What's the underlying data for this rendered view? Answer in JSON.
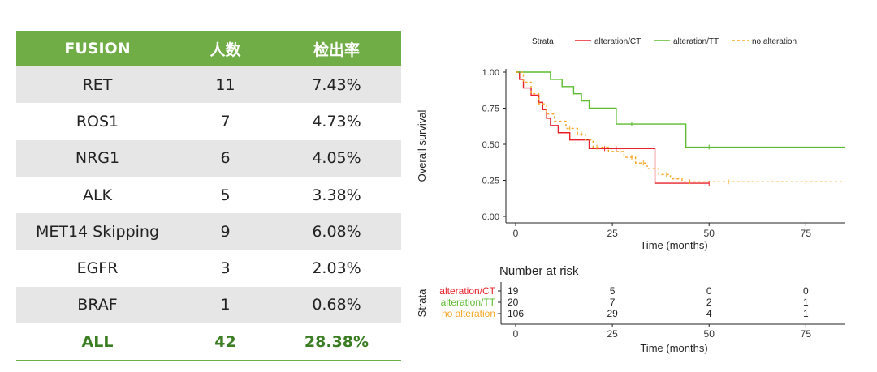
{
  "table": {
    "headers": [
      "FUSION",
      "人数",
      "检出率"
    ],
    "rows": [
      {
        "name": "RET",
        "count": "11",
        "rate": "7.43%"
      },
      {
        "name": "ROS1",
        "count": "7",
        "rate": "4.73%"
      },
      {
        "name": "NRG1",
        "count": "6",
        "rate": "4.05%"
      },
      {
        "name": "ALK",
        "count": "5",
        "rate": "3.38%"
      },
      {
        "name": "MET14 Skipping",
        "count": "9",
        "rate": "6.08%"
      },
      {
        "name": "EGFR",
        "count": "3",
        "rate": "2.03%"
      },
      {
        "name": "BRAF",
        "count": "1",
        "rate": "0.68%"
      }
    ],
    "total": {
      "name": "ALL",
      "count": "42",
      "rate": "28.38%"
    }
  },
  "colors": {
    "header_bg": "#70ad47",
    "total_text": "#3a7d22",
    "ct": "#e8202a",
    "tt": "#5dbb2f",
    "none": "#f5a623"
  },
  "chart_data": {
    "type": "line",
    "subtype": "kaplan-meier",
    "legend_title": "Strata",
    "legend_position": "top",
    "xlabel": "Time (months)",
    "ylabel": "Overall survival",
    "xlim": [
      0,
      85
    ],
    "ylim": [
      0,
      1
    ],
    "xticks": [
      0,
      25,
      50,
      75
    ],
    "yticks": [
      0.0,
      0.25,
      0.5,
      0.75,
      1.0
    ],
    "ytick_labels": [
      "0.00",
      "0.25",
      "0.50",
      "0.75",
      "1.00"
    ],
    "series": [
      {
        "name": "alteration/CT",
        "color": "#e8202a",
        "dash": "",
        "steps": [
          [
            0,
            1.0
          ],
          [
            1,
            0.95
          ],
          [
            2,
            0.89
          ],
          [
            4,
            0.84
          ],
          [
            6,
            0.79
          ],
          [
            7,
            0.74
          ],
          [
            8,
            0.68
          ],
          [
            9,
            0.63
          ],
          [
            11,
            0.58
          ],
          [
            14,
            0.53
          ],
          [
            19,
            0.47
          ],
          [
            23,
            0.47
          ],
          [
            26,
            0.47
          ],
          [
            36,
            0.47
          ],
          [
            36,
            0.23
          ],
          [
            50,
            0.23
          ]
        ],
        "censors": [
          [
            23,
            0.47
          ],
          [
            26,
            0.47
          ],
          [
            50,
            0.23
          ]
        ]
      },
      {
        "name": "alteration/TT",
        "color": "#5dbb2f",
        "dash": "",
        "steps": [
          [
            0,
            1.0
          ],
          [
            9,
            1.0
          ],
          [
            9,
            0.95
          ],
          [
            12,
            0.95
          ],
          [
            12,
            0.9
          ],
          [
            15,
            0.9
          ],
          [
            15,
            0.85
          ],
          [
            17,
            0.85
          ],
          [
            17,
            0.8
          ],
          [
            19,
            0.8
          ],
          [
            19,
            0.75
          ],
          [
            26,
            0.75
          ],
          [
            26,
            0.64
          ],
          [
            44,
            0.64
          ],
          [
            44,
            0.48
          ],
          [
            85,
            0.48
          ]
        ],
        "censors": [
          [
            30,
            0.64
          ],
          [
            50,
            0.48
          ],
          [
            66,
            0.48
          ]
        ]
      },
      {
        "name": "no alteration",
        "color": "#f5a623",
        "dash": "3,3",
        "steps": [
          [
            0,
            1.0
          ],
          [
            2,
            0.93
          ],
          [
            4,
            0.85
          ],
          [
            6,
            0.78
          ],
          [
            8,
            0.71
          ],
          [
            10,
            0.66
          ],
          [
            13,
            0.61
          ],
          [
            16,
            0.57
          ],
          [
            18,
            0.53
          ],
          [
            20,
            0.48
          ],
          [
            24,
            0.45
          ],
          [
            28,
            0.41
          ],
          [
            31,
            0.37
          ],
          [
            34,
            0.33
          ],
          [
            37,
            0.29
          ],
          [
            40,
            0.26
          ],
          [
            43,
            0.24
          ],
          [
            85,
            0.24
          ]
        ],
        "censors": [
          [
            14,
            0.61
          ],
          [
            17,
            0.57
          ],
          [
            21,
            0.48
          ],
          [
            27,
            0.45
          ],
          [
            30,
            0.41
          ],
          [
            33,
            0.37
          ],
          [
            36,
            0.33
          ],
          [
            39,
            0.29
          ],
          [
            45,
            0.24
          ],
          [
            55,
            0.24
          ],
          [
            75,
            0.24
          ]
        ]
      }
    ],
    "risk_table": {
      "title": "Number at risk",
      "ylabel": "Strata",
      "times": [
        0,
        25,
        50,
        75
      ],
      "rows": [
        {
          "name": "alteration/CT",
          "color": "#e8202a",
          "counts": [
            "19",
            "5",
            "0",
            "0"
          ]
        },
        {
          "name": "alteration/TT",
          "color": "#5dbb2f",
          "counts": [
            "20",
            "7",
            "2",
            "1"
          ]
        },
        {
          "name": "no alteration",
          "color": "#f5a623",
          "counts": [
            "106",
            "29",
            "4",
            "1"
          ]
        }
      ],
      "xlabel": "Time (months)",
      "xticks": [
        "0",
        "25",
        "50",
        "75"
      ]
    }
  }
}
